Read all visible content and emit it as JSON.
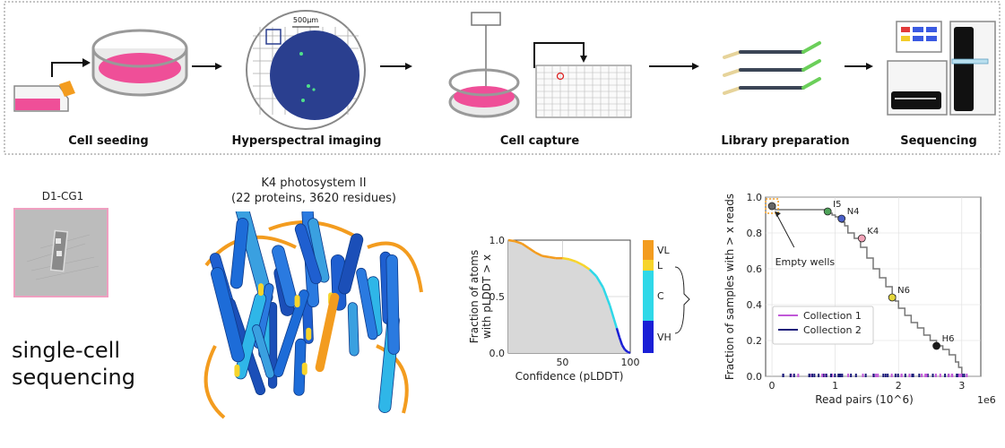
{
  "workflow": {
    "steps": [
      {
        "label": "Cell seeding"
      },
      {
        "label": "Hyperspectral imaging"
      },
      {
        "label": "Cell capture"
      },
      {
        "label": "Library preparation"
      },
      {
        "label": "Sequencing"
      }
    ],
    "scale_bar": "500μm"
  },
  "cell_image": {
    "label": "D1-CG1"
  },
  "single_cell_label": [
    "single-cell",
    "sequencing"
  ],
  "protein": {
    "title": "K4 photosystem II",
    "subtitle": "(22 proteins,  3620 residues)"
  },
  "colors": {
    "VL": "#f39c1f",
    "L": "#f7d42b",
    "C": "#2fd8e8",
    "VH": "#1a1fd6",
    "pink": "#ef4f98",
    "gray_fill": "#d8d8d8",
    "collection1": "#c058d8",
    "collection2": "#1a1a7a"
  },
  "chart_data": [
    {
      "type": "area",
      "xlabel": "Confidence (pLDDT)",
      "ylabel": "Fraction of atoms with pLDDT > x",
      "xlim": [
        10,
        100
      ],
      "ylim": [
        0,
        1
      ],
      "xticks": [
        "50",
        "100"
      ],
      "yticks": [
        "0.0",
        "0.5",
        "1.0"
      ],
      "x": [
        10,
        15,
        20,
        25,
        30,
        35,
        40,
        45,
        50,
        55,
        60,
        65,
        70,
        75,
        80,
        85,
        88,
        90,
        92,
        94,
        96,
        98,
        100
      ],
      "y": [
        1.0,
        0.99,
        0.97,
        0.93,
        0.89,
        0.86,
        0.85,
        0.84,
        0.84,
        0.83,
        0.81,
        0.78,
        0.74,
        0.68,
        0.58,
        0.42,
        0.3,
        0.22,
        0.14,
        0.07,
        0.03,
        0.01,
        0.0
      ],
      "bands": [
        {
          "name": "VL",
          "from": 0,
          "to": 50
        },
        {
          "name": "L",
          "from": 50,
          "to": 70
        },
        {
          "name": "C",
          "from": 70,
          "to": 90
        },
        {
          "name": "VH",
          "from": 90,
          "to": 100
        }
      ]
    },
    {
      "type": "line",
      "xlabel": "Read pairs (10^6)",
      "ylabel": "Fraction of samples with > x reads",
      "xlim": [
        -0.1,
        3.3
      ],
      "ylim": [
        0,
        1.0
      ],
      "xticks": [
        "0",
        "1",
        "2",
        "3"
      ],
      "yticks": [
        "0.0",
        "0.2",
        "0.4",
        "0.6",
        "0.8",
        "1.0"
      ],
      "x_offset_label": "1e6",
      "x": [
        0,
        0.05,
        0.85,
        0.88,
        0.95,
        1.0,
        1.05,
        1.1,
        1.15,
        1.2,
        1.3,
        1.4,
        1.5,
        1.6,
        1.7,
        1.8,
        1.9,
        1.95,
        2.0,
        2.1,
        2.2,
        2.3,
        2.4,
        2.5,
        2.6,
        2.7,
        2.8,
        2.9,
        2.95,
        3.0
      ],
      "y": [
        0.95,
        0.93,
        0.93,
        0.91,
        0.9,
        0.89,
        0.88,
        0.86,
        0.84,
        0.8,
        0.77,
        0.72,
        0.66,
        0.6,
        0.55,
        0.5,
        0.45,
        0.42,
        0.38,
        0.34,
        0.3,
        0.27,
        0.23,
        0.2,
        0.17,
        0.15,
        0.12,
        0.08,
        0.05,
        0.01
      ],
      "points": [
        {
          "label": "",
          "x": 0,
          "y": 0.95,
          "color": "#666666"
        },
        {
          "label": "I5",
          "x": 0.88,
          "y": 0.92,
          "color": "#4fa35a"
        },
        {
          "label": "N4",
          "x": 1.1,
          "y": 0.88,
          "color": "#4a5fc8"
        },
        {
          "label": "K4",
          "x": 1.42,
          "y": 0.77,
          "color": "#f2a3b8"
        },
        {
          "label": "N6",
          "x": 1.9,
          "y": 0.44,
          "color": "#e4d63a"
        },
        {
          "label": "H6",
          "x": 2.6,
          "y": 0.17,
          "color": "#1a1a1a"
        }
      ],
      "annotation": "Empty wells",
      "legend": [
        {
          "name": "Collection 1"
        },
        {
          "name": "Collection 2"
        }
      ],
      "legend_position": "lower-left"
    }
  ]
}
